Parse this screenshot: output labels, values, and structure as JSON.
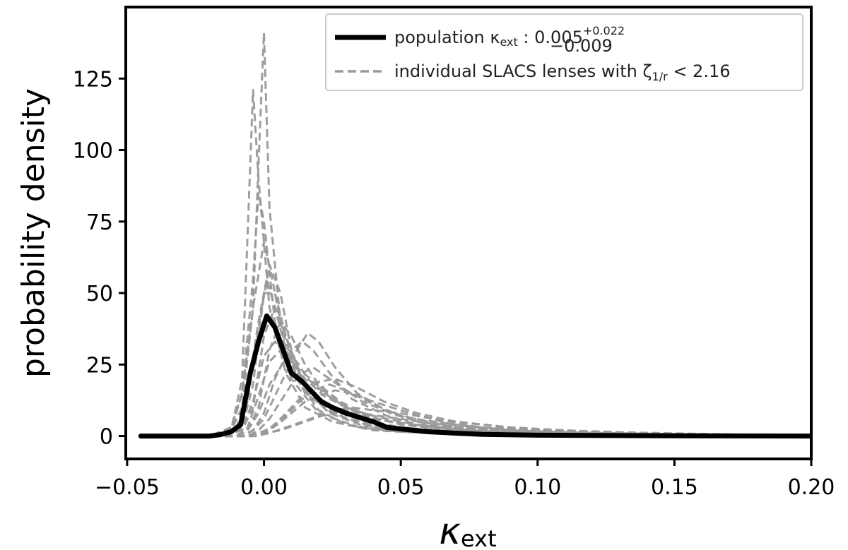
{
  "chart_data": {
    "type": "line",
    "title": "",
    "xlabel": "κ",
    "xlabel_sub": "ext",
    "ylabel": "probability density",
    "xlim": [
      -0.0505,
      0.2
    ],
    "ylim": [
      -8,
      150
    ],
    "xticks": [
      -0.05,
      0.0,
      0.05,
      0.1,
      0.15,
      0.2
    ],
    "xtick_labels": [
      "−0.05",
      "0.00",
      "0.05",
      "0.10",
      "0.15",
      "0.20"
    ],
    "yticks": [
      0,
      25,
      50,
      75,
      100,
      125
    ],
    "ytick_labels": [
      "0",
      "25",
      "50",
      "75",
      "100",
      "125"
    ],
    "grid": false,
    "legend_position": "top-right",
    "legend": {
      "population_label": "population κ",
      "population_label_sub": "ext",
      "population_value": " : 0.005",
      "population_sup": "+0.022",
      "population_sub": "−0.009",
      "individual_label": "individual SLACS lenses with ζ",
      "individual_label_sub": "1/r",
      "individual_label_tail": " < 2.16"
    },
    "series": [
      {
        "role": "population",
        "color": "#000000",
        "style": "solid",
        "x": [
          -0.045,
          -0.03,
          -0.02,
          -0.016,
          -0.012,
          -0.0085,
          -0.005,
          -0.002,
          0.001,
          0.004,
          0.007,
          0.01,
          0.014,
          0.017,
          0.021,
          0.025,
          0.03,
          0.035,
          0.04,
          0.045,
          0.05,
          0.06,
          0.07,
          0.08,
          0.1,
          0.12,
          0.15,
          0.2
        ],
        "values": [
          0,
          0,
          0,
          0.5,
          1.5,
          4,
          22,
          33,
          42,
          38,
          30,
          22,
          19,
          16,
          12,
          10,
          8,
          6.5,
          5,
          3,
          2.5,
          1.5,
          1,
          0.6,
          0.3,
          0.2,
          0.1,
          0
        ]
      }
    ],
    "individual_series": [
      {
        "x": [
          -0.045,
          -0.02,
          -0.012,
          -0.008,
          -0.004,
          -0.002,
          0.0,
          0.002,
          0.006,
          0.012,
          0.02,
          0.03,
          0.045,
          0.07,
          0.1,
          0.2
        ],
        "values": [
          0,
          0,
          2,
          10,
          45,
          95,
          141,
          80,
          40,
          20,
          9,
          4,
          2,
          1,
          0.3,
          0
        ]
      },
      {
        "x": [
          -0.045,
          -0.02,
          -0.012,
          -0.008,
          -0.006,
          -0.004,
          -0.002,
          0.002,
          0.008,
          0.015,
          0.025,
          0.04,
          0.06,
          0.1,
          0.2
        ],
        "values": [
          0,
          0,
          2,
          20,
          70,
          121,
          90,
          45,
          22,
          10,
          5,
          2,
          1,
          0.3,
          0
        ]
      },
      {
        "x": [
          -0.045,
          -0.02,
          -0.012,
          -0.008,
          -0.004,
          -0.002,
          0.0,
          0.004,
          0.01,
          0.02,
          0.035,
          0.05,
          0.08,
          0.2
        ],
        "values": [
          0,
          0,
          2,
          15,
          55,
          85,
          75,
          40,
          20,
          8,
          3,
          1.5,
          0.5,
          0
        ]
      },
      {
        "x": [
          -0.045,
          -0.02,
          -0.012,
          -0.008,
          -0.004,
          0.0,
          0.003,
          0.008,
          0.015,
          0.025,
          0.04,
          0.06,
          0.1,
          0.2
        ],
        "values": [
          0,
          0,
          3,
          15,
          45,
          68,
          55,
          30,
          15,
          8,
          3,
          1,
          0.3,
          0
        ]
      },
      {
        "x": [
          -0.045,
          -0.02,
          -0.01,
          -0.006,
          -0.002,
          0.001,
          0.004,
          0.008,
          0.015,
          0.025,
          0.04,
          0.06,
          0.1,
          0.2
        ],
        "values": [
          0,
          0,
          3,
          15,
          40,
          55,
          45,
          30,
          18,
          9,
          4,
          2,
          0.5,
          0
        ]
      },
      {
        "x": [
          -0.045,
          -0.015,
          -0.008,
          -0.004,
          0.0,
          0.004,
          0.008,
          0.012,
          0.018,
          0.025,
          0.035,
          0.05,
          0.07,
          0.1,
          0.2
        ],
        "values": [
          0,
          0,
          2,
          10,
          35,
          45,
          35,
          22,
          15,
          10,
          6,
          3,
          1.5,
          0.5,
          0
        ]
      },
      {
        "x": [
          -0.045,
          -0.015,
          -0.01,
          -0.006,
          -0.002,
          0.002,
          0.006,
          0.01,
          0.016,
          0.024,
          0.035,
          0.05,
          0.08,
          0.2
        ],
        "values": [
          0,
          0,
          2,
          12,
          38,
          60,
          50,
          30,
          15,
          8,
          4,
          2,
          0.5,
          0
        ]
      },
      {
        "x": [
          -0.045,
          -0.01,
          -0.006,
          -0.002,
          0.002,
          0.006,
          0.01,
          0.014,
          0.018,
          0.024,
          0.032,
          0.045,
          0.06,
          0.09,
          0.2
        ],
        "values": [
          0,
          0,
          2,
          8,
          18,
          24,
          30,
          33,
          30,
          22,
          13,
          7,
          3,
          1,
          0
        ]
      },
      {
        "x": [
          -0.045,
          -0.008,
          -0.004,
          0.0,
          0.004,
          0.008,
          0.012,
          0.016,
          0.02,
          0.026,
          0.034,
          0.046,
          0.06,
          0.09,
          0.2
        ],
        "values": [
          0,
          0,
          2,
          6,
          14,
          22,
          30,
          36,
          33,
          24,
          15,
          8,
          4,
          1.5,
          0
        ]
      },
      {
        "x": [
          -0.045,
          -0.012,
          -0.008,
          -0.004,
          0.0,
          0.004,
          0.008,
          0.012,
          0.017,
          0.024,
          0.034,
          0.05,
          0.07,
          0.1,
          0.2
        ],
        "values": [
          0,
          0,
          3,
          12,
          28,
          33,
          28,
          24,
          20,
          14,
          8,
          4,
          2,
          0.5,
          0
        ]
      },
      {
        "x": [
          -0.045,
          -0.006,
          -0.002,
          0.002,
          0.006,
          0.01,
          0.014,
          0.018,
          0.024,
          0.03,
          0.038,
          0.05,
          0.07,
          0.1,
          0.15,
          0.2
        ],
        "values": [
          0,
          0,
          2,
          6,
          12,
          18,
          22,
          24,
          20,
          16,
          12,
          7,
          3,
          1.5,
          0.5,
          0
        ]
      },
      {
        "x": [
          -0.045,
          -0.004,
          0.0,
          0.005,
          0.01,
          0.015,
          0.02,
          0.026,
          0.032,
          0.04,
          0.05,
          0.065,
          0.08,
          0.1,
          0.13,
          0.2
        ],
        "values": [
          0,
          0,
          1,
          4,
          8,
          12,
          14,
          16,
          15,
          12,
          9,
          5,
          3,
          2,
          1,
          0
        ]
      },
      {
        "x": [
          -0.045,
          -0.01,
          -0.006,
          -0.002,
          0.002,
          0.006,
          0.01,
          0.015,
          0.02,
          0.028,
          0.04,
          0.06,
          0.09,
          0.2
        ],
        "values": [
          0,
          0,
          2,
          10,
          30,
          40,
          35,
          25,
          18,
          12,
          6,
          3,
          1,
          0
        ]
      },
      {
        "x": [
          -0.045,
          -0.01,
          -0.006,
          -0.002,
          0.002,
          0.006,
          0.01,
          0.015,
          0.022,
          0.03,
          0.04,
          0.055,
          0.08,
          0.12,
          0.2
        ],
        "values": [
          0,
          0,
          3,
          14,
          26,
          30,
          26,
          20,
          14,
          10,
          6,
          4,
          2,
          1,
          0
        ]
      },
      {
        "x": [
          -0.045,
          -0.006,
          -0.002,
          0.003,
          0.008,
          0.013,
          0.018,
          0.024,
          0.03,
          0.036,
          0.044,
          0.055,
          0.07,
          0.09,
          0.12,
          0.2
        ],
        "values": [
          0,
          0,
          1,
          3,
          7,
          12,
          16,
          18,
          16,
          12,
          9,
          6,
          4,
          2,
          1,
          0
        ]
      },
      {
        "x": [
          -0.045,
          -0.008,
          -0.004,
          0.0,
          0.004,
          0.008,
          0.012,
          0.016,
          0.022,
          0.03,
          0.04,
          0.055,
          0.075,
          0.1,
          0.2
        ],
        "values": [
          0,
          0,
          2,
          8,
          20,
          28,
          26,
          20,
          15,
          10,
          7,
          4,
          2,
          1,
          0
        ]
      },
      {
        "x": [
          -0.045,
          -0.004,
          0.0,
          0.006,
          0.012,
          0.018,
          0.024,
          0.03,
          0.036,
          0.042,
          0.05,
          0.06,
          0.08,
          0.1,
          0.13,
          0.16,
          0.2
        ],
        "values": [
          0,
          0,
          1,
          2,
          4,
          6,
          8,
          9,
          8,
          7,
          6,
          4.5,
          3,
          2,
          1.2,
          0.6,
          0
        ]
      },
      {
        "x": [
          -0.045,
          -0.012,
          -0.008,
          -0.004,
          0.0,
          0.004,
          0.008,
          0.013,
          0.02,
          0.03,
          0.045,
          0.065,
          0.1,
          0.2
        ],
        "values": [
          0,
          0,
          3,
          18,
          50,
          50,
          35,
          22,
          12,
          6,
          3,
          1.5,
          0.5,
          0
        ]
      },
      {
        "x": [
          -0.045,
          -0.004,
          0.0,
          0.005,
          0.01,
          0.015,
          0.02,
          0.026,
          0.034,
          0.044,
          0.056,
          0.07,
          0.09,
          0.12,
          0.2
        ],
        "values": [
          0,
          0,
          1,
          5,
          10,
          15,
          19,
          20,
          17,
          12,
          8,
          5,
          3,
          1.5,
          0
        ]
      },
      {
        "x": [
          -0.045,
          -0.003,
          0.002,
          0.008,
          0.014,
          0.02,
          0.026,
          0.032,
          0.04,
          0.05,
          0.062,
          0.075,
          0.09,
          0.11,
          0.14,
          0.2
        ],
        "values": [
          0,
          0,
          1,
          3,
          5,
          7,
          9,
          10,
          9,
          8,
          6,
          4.5,
          3,
          2,
          1,
          0
        ]
      }
    ],
    "individual_color": "#999999"
  }
}
